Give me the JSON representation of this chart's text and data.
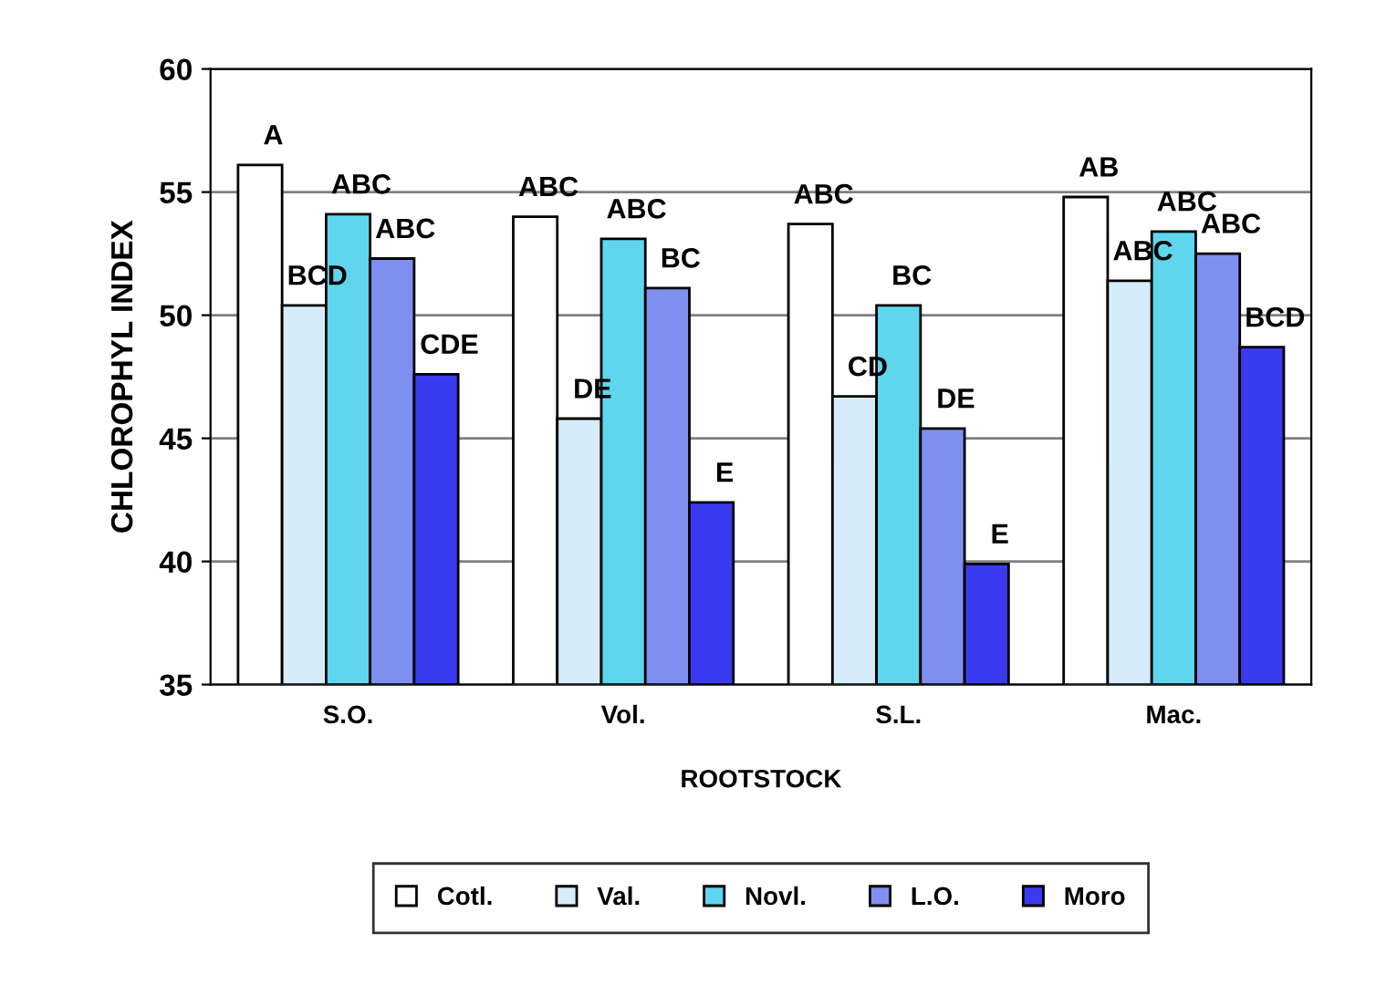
{
  "chart_data": {
    "type": "bar",
    "xlabel": "ROOTSTOCK",
    "ylabel": "CHLOROPHYL INDEX",
    "categories": [
      "S.O.",
      "Vol.",
      "S.L.",
      "Mac."
    ],
    "series": [
      {
        "name": "Cotl.",
        "color": "#ffffff",
        "values": [
          56.1,
          54.0,
          53.7,
          54.8
        ],
        "value_labels": [
          "A",
          "ABC",
          "ABC",
          "AB"
        ]
      },
      {
        "name": "Val.",
        "color": "#d6ecfa",
        "values": [
          50.4,
          45.8,
          46.7,
          51.4
        ],
        "value_labels": [
          "BCD",
          "DE",
          "CD",
          "ABC"
        ]
      },
      {
        "name": "Novl.",
        "color": "#5fd6ee",
        "values": [
          54.1,
          53.1,
          50.4,
          53.4
        ],
        "value_labels": [
          "ABC",
          "ABC",
          "BC",
          "ABC"
        ]
      },
      {
        "name": "L.O.",
        "color": "#7f8ff0",
        "values": [
          52.3,
          51.1,
          45.4,
          52.5
        ],
        "value_labels": [
          "ABC",
          "BC",
          "DE",
          "ABC"
        ]
      },
      {
        "name": "Moro",
        "color": "#3a3af0",
        "values": [
          47.6,
          42.4,
          39.9,
          48.7
        ],
        "value_labels": [
          "CDE",
          "E",
          "E",
          "BCD"
        ]
      }
    ],
    "ylim": [
      35,
      60
    ],
    "yticks": [
      35,
      40,
      45,
      50,
      55,
      60
    ],
    "grid": "y",
    "legend": "bottom"
  }
}
